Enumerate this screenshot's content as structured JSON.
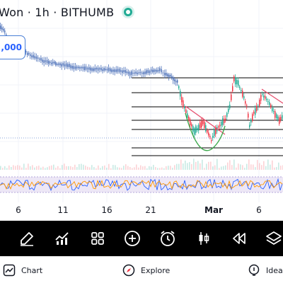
{
  "header": {
    "symbol_title": "Won · 1h · BITHUMB",
    "status": "live",
    "status_color": "#22ab94"
  },
  "price_tag": {
    "label": ",000",
    "color": "#2962ff"
  },
  "time_axis": {
    "labels": [
      "6",
      "11",
      "16",
      "21",
      "Mar",
      "6"
    ]
  },
  "toolbar": {
    "tools": [
      {
        "icon": "brush-icon"
      },
      {
        "icon": "indicators-icon"
      },
      {
        "icon": "templates-icon"
      },
      {
        "icon": "add-icon"
      },
      {
        "icon": "alert-clock-icon"
      },
      {
        "icon": "candles-icon"
      },
      {
        "icon": "replay-icon"
      },
      {
        "icon": "layers-icon"
      }
    ]
  },
  "bottom_nav": {
    "chart_label": "Chart",
    "explore_label": "Explore",
    "ideas_label": "Ideas"
  },
  "colors": {
    "up": "#22ab94",
    "down": "#f23645",
    "price_line": "#4a6fb8",
    "drawing_red": "#e64a6a",
    "drawing_green": "#3ba84a",
    "horizontal_lines": "#000000",
    "oscillator_band": "#ede7f6"
  }
}
